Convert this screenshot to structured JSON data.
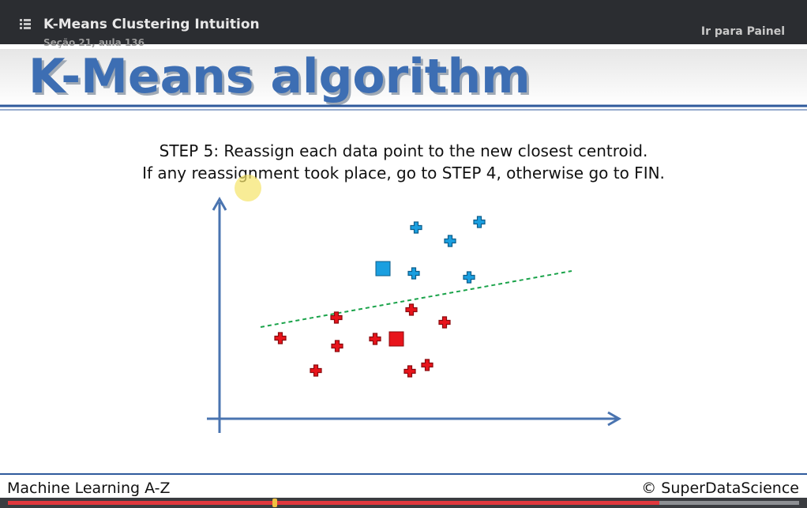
{
  "header": {
    "title": "K-Means Clustering Intuition",
    "subtitle": "Seção 21, aula 136",
    "action": "Ir para Painel"
  },
  "slide": {
    "title": "K-Means algorithm",
    "step_lines": [
      "STEP 5: Reassign each data point to the new closest centroid.",
      "If any reassignment took place, go to STEP 4, otherwise go to FIN."
    ]
  },
  "footer": {
    "left": "Machine Learning A-Z",
    "right": "© SuperDataScience"
  }
}
